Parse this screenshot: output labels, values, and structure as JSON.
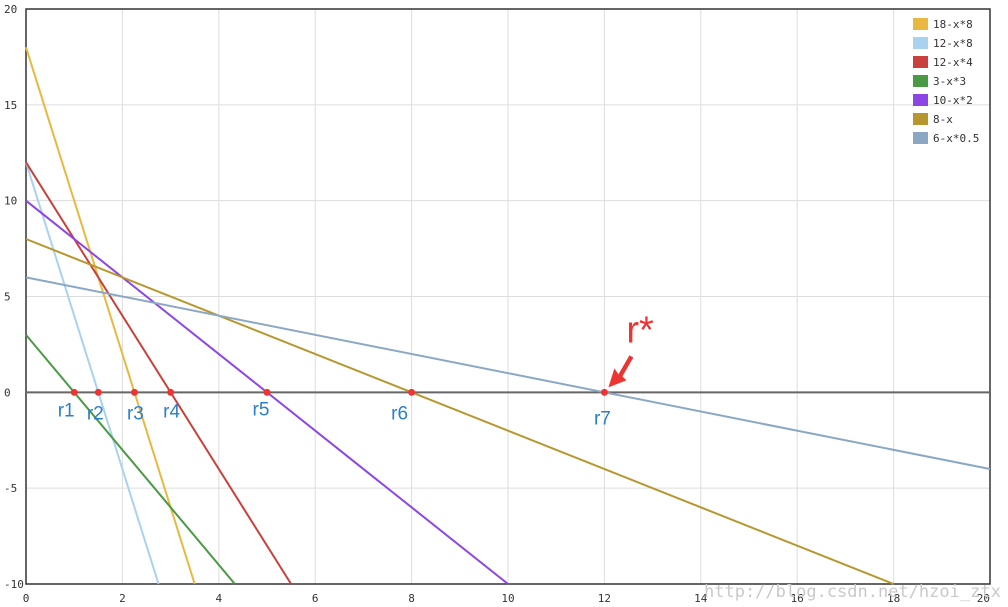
{
  "chart_data": {
    "type": "line",
    "xlim": [
      0,
      20
    ],
    "ylim": [
      -10,
      20
    ],
    "x_ticks": [
      "0",
      "2",
      "4",
      "6",
      "8",
      "10",
      "12",
      "14",
      "16",
      "18",
      "20"
    ],
    "y_ticks": [
      "-10",
      "-5",
      "0",
      "5",
      "10",
      "15",
      "20"
    ],
    "grid": true,
    "legend_position": "top-right",
    "series": [
      {
        "name": "18-x*8",
        "intercept": 18,
        "slope": -8,
        "color": "#e8b840"
      },
      {
        "name": "12-x*8",
        "intercept": 12,
        "slope": -8,
        "color": "#a9d2ee"
      },
      {
        "name": "12-x*4",
        "intercept": 12,
        "slope": -4,
        "color": "#c8413c"
      },
      {
        "name": "3-x*3",
        "intercept": 3,
        "slope": -3,
        "color": "#4a9a44"
      },
      {
        "name": "10-x*2",
        "intercept": 10,
        "slope": -2,
        "color": "#8d45e6"
      },
      {
        "name": "8-x",
        "intercept": 8,
        "slope": -1,
        "color": "#b8962e"
      },
      {
        "name": "6-x*0.5",
        "intercept": 6,
        "slope": -0.5,
        "color": "#8aa8c4"
      }
    ],
    "roots": [
      {
        "label": "r1",
        "x": 1
      },
      {
        "label": "r2",
        "x": 1.5
      },
      {
        "label": "r3",
        "x": 2.25
      },
      {
        "label": "r4",
        "x": 3
      },
      {
        "label": "r5",
        "x": 5
      },
      {
        "label": "r6",
        "x": 8
      },
      {
        "label": "r7",
        "x": 12
      }
    ],
    "annotation": {
      "text": "r*",
      "points_to_x": 12,
      "color": "#ee3333"
    },
    "marker_color": "#ee3333",
    "root_label_color": "#2a7fc9",
    "zero_line_color": "#666666"
  },
  "watermark": "http://blog.csdn.net/hzoi_ztx"
}
